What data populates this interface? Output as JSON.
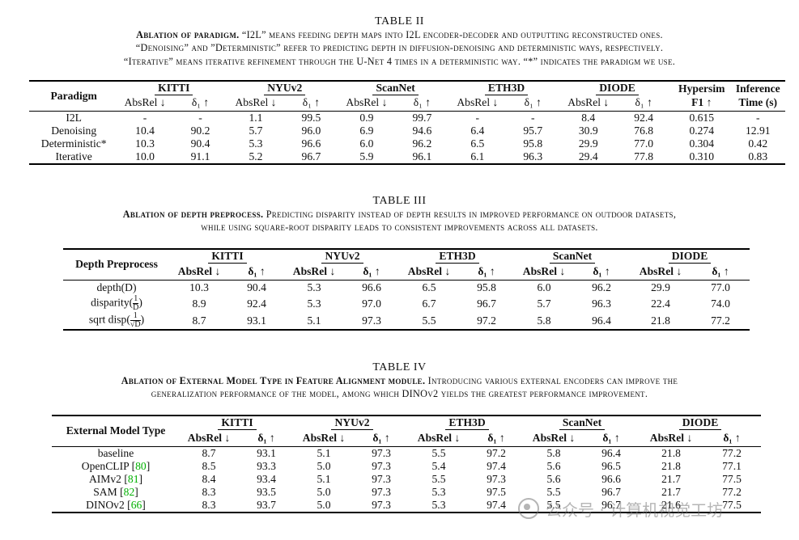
{
  "table2": {
    "number": "TABLE II",
    "caption_bold": "Ablation of paradigm.",
    "caption_lines": [
      " “I2L” means feeding depth maps into I2L encoder-decoder and outputting reconstructed ones.",
      "“Denoising” and ”Deterministic” refer to predicting depth in diffusion-denoising and deterministic ways, respectively.",
      "“Iterative” means iterative refinement through the U-Net 4 times in a deterministic way. “*” indicates the paradigm we use."
    ],
    "row_header": "Paradigm",
    "groups": [
      "KITTI",
      "NYUv2",
      "ScanNet",
      "ETH3D",
      "DIODE"
    ],
    "extra_headers": [
      [
        "Hypersim",
        "F1 ↑"
      ],
      [
        "Inference",
        "Time (s)"
      ]
    ],
    "metric_absrel": "AbsRel ↓",
    "metric_delta": "δ₁ ↑",
    "rows": [
      {
        "label": "I2L",
        "vals": [
          "-",
          "-",
          "1.1",
          "99.5",
          "0.9",
          "99.7",
          "-",
          "-",
          "8.4",
          "92.4",
          "0.615",
          "-"
        ]
      },
      {
        "label": "Denoising",
        "vals": [
          "10.4",
          "90.2",
          "5.7",
          "96.0",
          "6.9",
          "94.6",
          "6.4",
          "95.7",
          "30.9",
          "76.8",
          "0.274",
          "12.91"
        ]
      },
      {
        "label": "Deterministic*",
        "vals": [
          "10.3",
          "90.4",
          "5.3",
          "96.6",
          "6.0",
          "96.2",
          "6.5",
          "95.8",
          "29.9",
          "77.0",
          "0.304",
          "0.42"
        ]
      },
      {
        "label": "Iterative",
        "vals": [
          "10.0",
          "91.1",
          "5.2",
          "96.7",
          "5.9",
          "96.1",
          "6.1",
          "96.3",
          "29.4",
          "77.8",
          "0.310",
          "0.83"
        ]
      }
    ]
  },
  "table3": {
    "number": "TABLE III",
    "caption_bold": "Ablation of depth preprocess.",
    "caption_lines": [
      " Predicting disparity instead of depth results in improved performance on outdoor datasets,",
      "while using square-root disparity leads to consistent improvements across all datasets."
    ],
    "row_header": "Depth Preprocess",
    "groups": [
      "KITTI",
      "NYUv2",
      "ETH3D",
      "ScanNet",
      "DIODE"
    ],
    "rows": [
      {
        "label": "depth(D)",
        "vals": [
          "10.3",
          "90.4",
          "5.3",
          "96.6",
          "6.5",
          "95.8",
          "6.0",
          "96.2",
          "29.9",
          "77.0"
        ]
      },
      {
        "label": "disparity(",
        "frac_num": "1",
        "frac_den": "D",
        "label_end": ")",
        "vals": [
          "8.9",
          "92.4",
          "5.3",
          "97.0",
          "6.7",
          "96.7",
          "5.7",
          "96.3",
          "22.4",
          "74.0"
        ]
      },
      {
        "label": "sqrt disp(",
        "frac_num": "1",
        "frac_den": "√D",
        "label_end": ")",
        "vals": [
          "8.7",
          "93.1",
          "5.1",
          "97.3",
          "5.5",
          "97.2",
          "5.8",
          "96.4",
          "21.8",
          "77.2"
        ]
      }
    ]
  },
  "table4": {
    "number": "TABLE IV",
    "caption_bold": "Ablation of External Model Type in Feature Alignment module.",
    "caption_lines": [
      " Introducing various external encoders can improve the",
      "generalization performance of the model, among which DINOv2 yields the greatest performance improvement."
    ],
    "row_header": "External Model Type",
    "groups": [
      "KITTI",
      "NYUv2",
      "ETH3D",
      "ScanNet",
      "DIODE"
    ],
    "rows": [
      {
        "label": "baseline",
        "ref": "",
        "vals": [
          "8.7",
          "93.1",
          "5.1",
          "97.3",
          "5.5",
          "97.2",
          "5.8",
          "96.4",
          "21.8",
          "77.2"
        ]
      },
      {
        "label": "OpenCLIP ",
        "ref": "80",
        "vals": [
          "8.5",
          "93.3",
          "5.0",
          "97.3",
          "5.4",
          "97.4",
          "5.6",
          "96.5",
          "21.8",
          "77.1"
        ]
      },
      {
        "label": "AIMv2 ",
        "ref": "81",
        "vals": [
          "8.4",
          "93.4",
          "5.1",
          "97.3",
          "5.5",
          "97.3",
          "5.6",
          "96.6",
          "21.7",
          "77.5"
        ]
      },
      {
        "label": "SAM ",
        "ref": "82",
        "vals": [
          "8.3",
          "93.5",
          "5.0",
          "97.3",
          "5.3",
          "97.5",
          "5.5",
          "96.7",
          "21.7",
          "77.2"
        ]
      },
      {
        "label": "DINOv2 ",
        "ref": "66",
        "vals": [
          "8.3",
          "93.7",
          "5.0",
          "97.3",
          "5.3",
          "97.4",
          "5.5",
          "96.7",
          "21.6",
          "77.5"
        ]
      }
    ]
  },
  "watermark": {
    "text": "公众号 · 计算机视觉工坊",
    "icon": "wechat-icon"
  }
}
